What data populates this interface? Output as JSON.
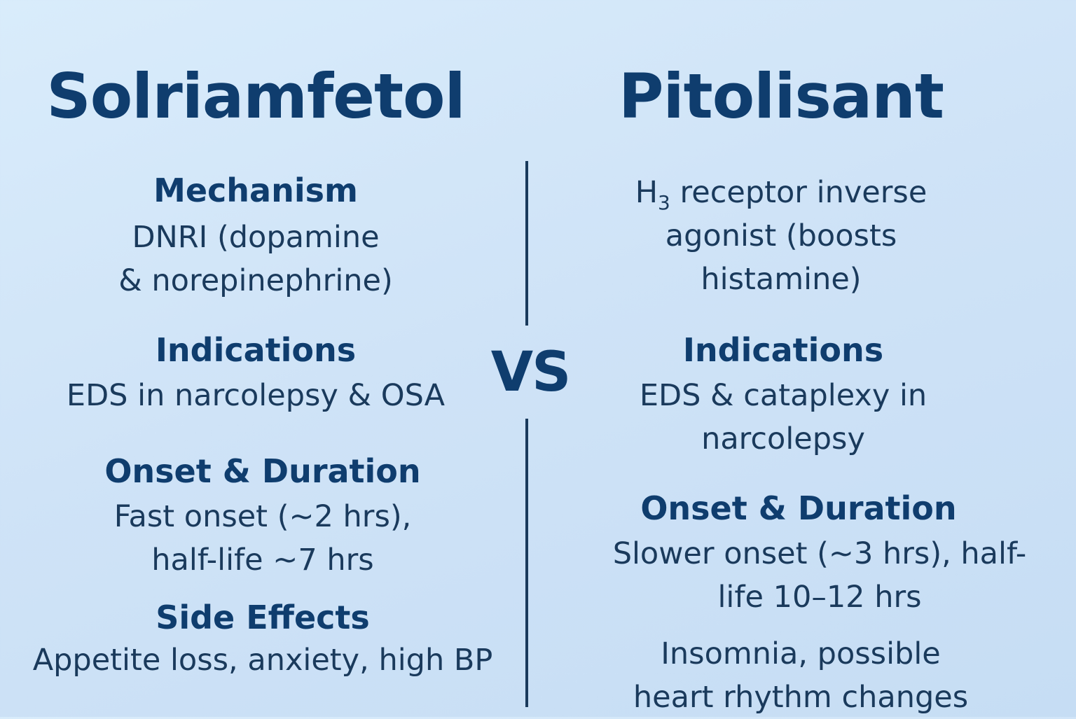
{
  "left": {
    "title": "Solriamfetol",
    "mechanism": {
      "heading": "Mechanism",
      "lines": [
        "DNRI (dopamine",
        "& norepinephrine)"
      ]
    },
    "indications": {
      "heading": "Indications",
      "lines": [
        "EDS in narcolepsy & OSA"
      ]
    },
    "onset": {
      "heading": "Onset & Duration",
      "lines": [
        "Fast onset (~2 hrs),",
        "half-life ~7 hrs"
      ]
    },
    "side_effects": {
      "heading": "Side Effects",
      "lines": [
        "Appetite loss, anxiety, high BP"
      ]
    }
  },
  "center": {
    "vs": "VS"
  },
  "right": {
    "title": "Pitolisant",
    "mechanism": {
      "line1_prefix": "H",
      "line1_subscript": "3",
      "line1_rest": " receptor inverse",
      "lines": [
        "agonist (boosts",
        "histamine)"
      ]
    },
    "indications": {
      "heading": "Indications",
      "lines": [
        "EDS & cataplexy in",
        "narcolepsy"
      ]
    },
    "onset": {
      "heading": "Onset & Duration",
      "lines": [
        "Slower onset (~3 hrs), half-",
        "life 10–12 hrs"
      ]
    },
    "side_effects": {
      "lines": [
        "Insomnia, possible",
        "heart rhythm changes"
      ]
    }
  }
}
